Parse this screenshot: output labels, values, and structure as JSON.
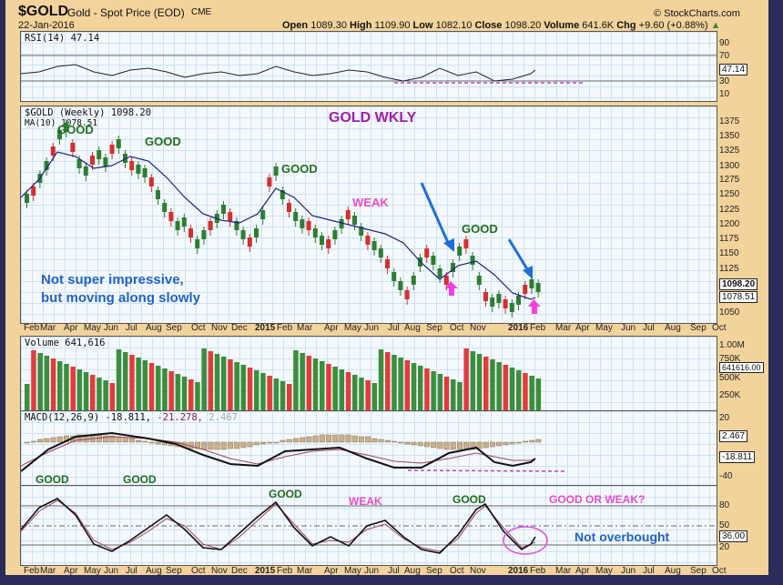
{
  "header": {
    "symbol": "$GOLD",
    "name": "Gold - Spot Price (EOD)",
    "exchange": "CME",
    "date": "22-Jan-2016",
    "copyright": "© StockCharts.com",
    "open_label": "Open",
    "open": "1089.30",
    "high_label": "High",
    "high": "1109.90",
    "low_label": "Low",
    "low": "1082.10",
    "close_label": "Close",
    "close": "1098.20",
    "volume_label": "Volume",
    "volume": "641.6K",
    "chg_label": "Chg",
    "chg": "+9.60 (+0.88%)"
  },
  "rsi": {
    "label": "RSI(14) 47.14",
    "ticks": [
      "90",
      "70",
      "30",
      "10"
    ],
    "value_tag": "47.14"
  },
  "price": {
    "label": "$GOLD (Weekly) 1098.20",
    "ma_label": "MA(10) 1078.51",
    "ticks": [
      "1375",
      "1350",
      "1325",
      "1300",
      "1275",
      "1250",
      "1225",
      "1200",
      "1175",
      "1150",
      "1125",
      "1050"
    ],
    "close_tag": "1098.20",
    "ma_tag": "1078.51"
  },
  "volume": {
    "label": "Volume 641,616",
    "ticks": [
      "1.00M",
      "750K",
      "500K",
      "250K"
    ],
    "value_tag": "641616.00"
  },
  "macd": {
    "label": "MACD(12,26,9)",
    "v1": "-18.811,",
    "v2": "-21.278,",
    "v3": "2.467",
    "ticks": [
      "20",
      "-40"
    ],
    "tag_hist": "2.467",
    "tag_macd": "-18.811"
  },
  "stoch": {
    "ticks": [
      "80",
      "50",
      "20"
    ],
    "value_tag": "36.00"
  },
  "months": [
    "Feb",
    "Mar",
    "Apr",
    "May",
    "Jun",
    "Jul",
    "Aug",
    "Sep",
    "Oct",
    "Nov",
    "Dec",
    "2015",
    "Feb",
    "Mar",
    "Apr",
    "May",
    "Jun",
    "Jul",
    "Aug",
    "Sep",
    "Oct",
    "Nov",
    "2016",
    "Feb",
    "Mar",
    "Apr",
    "May",
    "Jun",
    "Jul",
    "Aug",
    "Sep",
    "Oct"
  ],
  "annotations": {
    "title": "GOLD WKLY",
    "good": "GOOD",
    "weak": "WEAK",
    "comment_line1": "Not super impressive,",
    "comment_line2": "but moving along slowly",
    "good_or_weak": "GOOD OR WEAK?",
    "not_overbought": "Not overbought"
  },
  "chart_data": {
    "type": "candlestick",
    "title": "$GOLD Gold - Spot Price (EOD) Weekly",
    "x_range": [
      "Feb 2014",
      "Oct 2016"
    ],
    "ylim": [
      1040,
      1390
    ],
    "price_approx": [
      {
        "date": "Mar 2014",
        "close": 1380
      },
      {
        "date": "Jul 2014",
        "close": 1320
      },
      {
        "date": "Nov 2014",
        "close": 1140
      },
      {
        "date": "Jan 2015",
        "close": 1290
      },
      {
        "date": "May 2015",
        "close": 1225
      },
      {
        "date": "Jul 2015",
        "close": 1085
      },
      {
        "date": "Oct 2015",
        "close": 1180
      },
      {
        "date": "Dec 2015",
        "close": 1050
      },
      {
        "date": "Jan 2016",
        "close": 1098.2
      }
    ],
    "ma10_last": 1078.51,
    "rsi14_last": 47.14,
    "volume_last": 641616,
    "macd_last": {
      "macd": -18.811,
      "signal": -21.278,
      "hist": 2.467
    },
    "stochastic_last": 36.0
  }
}
